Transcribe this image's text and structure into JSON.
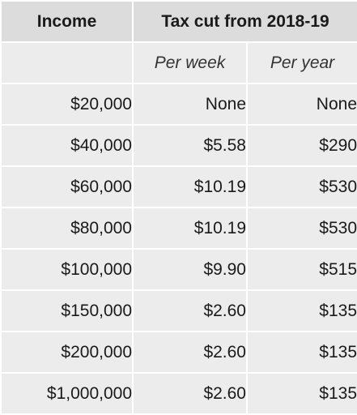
{
  "chart_data": {
    "type": "table",
    "columns": {
      "income": "Income",
      "group": "Tax cut from 2018-19",
      "per_week": "Per week",
      "per_year": "Per year"
    },
    "rows": [
      {
        "income": "$20,000",
        "per_week": "None",
        "per_year": "None"
      },
      {
        "income": "$40,000",
        "per_week": "$5.58",
        "per_year": "$290"
      },
      {
        "income": "$60,000",
        "per_week": "$10.19",
        "per_year": "$530"
      },
      {
        "income": "$80,000",
        "per_week": "$10.19",
        "per_year": "$530"
      },
      {
        "income": "$100,000",
        "per_week": "$9.90",
        "per_year": "$515"
      },
      {
        "income": "$150,000",
        "per_week": "$2.60",
        "per_year": "$135"
      },
      {
        "income": "$200,000",
        "per_week": "$2.60",
        "per_year": "$135"
      },
      {
        "income": "$1,000,000",
        "per_week": "$2.60",
        "per_year": "$135"
      }
    ]
  }
}
